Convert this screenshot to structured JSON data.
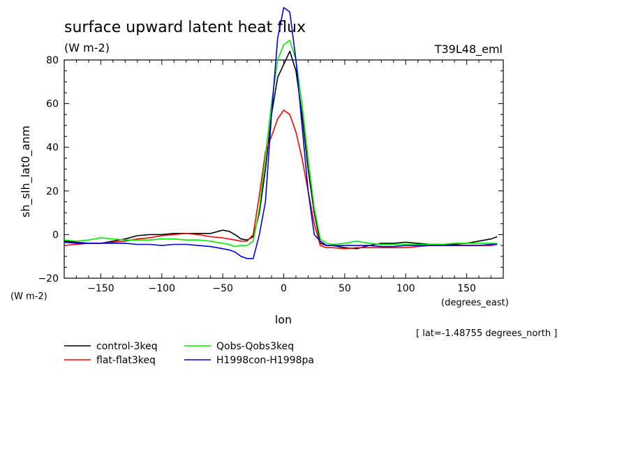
{
  "chart_data": {
    "type": "line",
    "title": "surface upward latent heat flux",
    "units": "(W m-2)",
    "experiment": "T39L48_eml",
    "ylabel": "sh_slh_lat0_anm",
    "ylabel_units": "(W m-2)",
    "xlabel": "lon",
    "xlabel_units": "(degrees_east)",
    "annotation": "[ lat=-1.48755 degrees_north ]",
    "xlim": [
      -180,
      180
    ],
    "ylim": [
      -20,
      80
    ],
    "x_ticks": [
      -150,
      -100,
      -50,
      0,
      50,
      100,
      150
    ],
    "y_ticks": [
      -20,
      0,
      20,
      40,
      60,
      80
    ],
    "grid": false,
    "legend_position": "bottom-left",
    "series": [
      {
        "name": "control-3keq",
        "color": "#000000",
        "x": [
          -180,
          -170,
          -160,
          -150,
          -140,
          -130,
          -120,
          -110,
          -100,
          -90,
          -80,
          -70,
          -60,
          -50,
          -45,
          -40,
          -35,
          -30,
          -25,
          -20,
          -15,
          -10,
          -5,
          0,
          5,
          10,
          15,
          20,
          25,
          30,
          35,
          40,
          50,
          60,
          70,
          80,
          90,
          100,
          110,
          120,
          130,
          140,
          150,
          160,
          170,
          175
        ],
        "values": [
          -3,
          -3.5,
          -4,
          -4,
          -3,
          -2,
          -0.5,
          0,
          0,
          0.5,
          0.5,
          0.5,
          0.5,
          2,
          1.5,
          0,
          -2,
          -2.5,
          -1,
          10,
          30,
          55,
          72,
          78,
          84,
          75,
          55,
          30,
          10,
          -4,
          -5,
          -5,
          -6,
          -6.5,
          -5,
          -4,
          -4,
          -3.5,
          -4,
          -4.5,
          -4.5,
          -4.5,
          -4,
          -3,
          -2,
          -1
        ]
      },
      {
        "name": "flat-flat3keq",
        "color": "#ff0000",
        "x": [
          -180,
          -170,
          -160,
          -150,
          -140,
          -130,
          -120,
          -110,
          -100,
          -90,
          -80,
          -70,
          -60,
          -50,
          -45,
          -40,
          -35,
          -30,
          -25,
          -20,
          -15,
          -10,
          -5,
          0,
          5,
          10,
          15,
          20,
          25,
          30,
          35,
          40,
          50,
          60,
          70,
          80,
          90,
          100,
          110,
          120,
          130,
          140,
          150,
          160,
          170,
          175
        ],
        "values": [
          -5,
          -4.5,
          -4,
          -4,
          -3.5,
          -3,
          -2,
          -1.5,
          -0.5,
          0,
          0.5,
          0,
          -1,
          -1.5,
          -2,
          -2.5,
          -3,
          -3,
          0,
          18,
          38,
          45,
          53,
          57,
          55,
          47,
          35,
          20,
          5,
          -5,
          -6,
          -6,
          -6.5,
          -6,
          -6,
          -6,
          -6,
          -6,
          -5.5,
          -5,
          -5,
          -5,
          -5,
          -5,
          -5,
          -4.5
        ]
      },
      {
        "name": "Qobs-Qobs3keq",
        "color": "#00ee00",
        "x": [
          -180,
          -170,
          -160,
          -150,
          -140,
          -130,
          -120,
          -110,
          -100,
          -90,
          -80,
          -70,
          -60,
          -50,
          -45,
          -40,
          -35,
          -30,
          -25,
          -20,
          -15,
          -10,
          -5,
          0,
          5,
          10,
          15,
          20,
          25,
          30,
          35,
          40,
          50,
          60,
          70,
          80,
          90,
          100,
          110,
          120,
          130,
          140,
          150,
          160,
          170,
          175
        ],
        "values": [
          -2.5,
          -3,
          -2.5,
          -1.5,
          -2,
          -2.5,
          -2.5,
          -2.5,
          -2,
          -2,
          -2.5,
          -2.5,
          -3,
          -4,
          -4.5,
          -5.5,
          -5,
          -5,
          -3,
          12,
          36,
          60,
          80,
          87,
          89,
          80,
          60,
          35,
          12,
          -2,
          -4,
          -4.5,
          -4,
          -3,
          -4,
          -4.5,
          -4.5,
          -4.5,
          -4.5,
          -4.5,
          -4.5,
          -4,
          -4,
          -4,
          -4,
          -4
        ]
      },
      {
        "name": "H1998con-H1998pa",
        "color": "#0000dd",
        "x": [
          -180,
          -170,
          -160,
          -150,
          -140,
          -130,
          -120,
          -110,
          -100,
          -90,
          -80,
          -70,
          -60,
          -50,
          -45,
          -40,
          -35,
          -30,
          -25,
          -20,
          -15,
          -10,
          -5,
          0,
          5,
          10,
          15,
          20,
          25,
          30,
          35,
          40,
          50,
          60,
          70,
          80,
          90,
          100,
          110,
          120,
          130,
          140,
          150,
          160,
          170,
          175
        ],
        "values": [
          -3.5,
          -4,
          -4,
          -4,
          -4,
          -4,
          -4.5,
          -4.5,
          -5,
          -4.5,
          -4.5,
          -5,
          -5.5,
          -6.5,
          -7,
          -8,
          -10,
          -11,
          -11,
          0,
          15,
          55,
          90,
          104,
          102,
          80,
          50,
          20,
          0,
          -3,
          -5,
          -5,
          -5,
          -5,
          -5,
          -5.5,
          -5.5,
          -5,
          -5,
          -5,
          -5,
          -5,
          -5,
          -5,
          -4.5,
          -4.5
        ]
      }
    ]
  }
}
